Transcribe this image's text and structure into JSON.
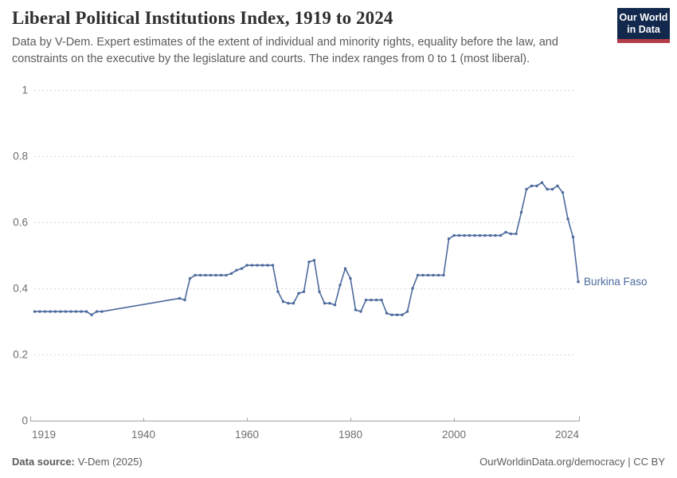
{
  "header": {
    "title": "Liberal Political Institutions Index, 1919 to 2024",
    "subtitle": "Data by V-Dem. Expert estimates of the extent of individual and minority rights, equality before the law, and\nconstraints on the executive by the legislature and courts. The index ranges from 0 to 1 (most liberal)."
  },
  "logo": {
    "line1": "Our World",
    "line2": "in Data",
    "background_color": "#12294d",
    "stripe_color": "#b23c47"
  },
  "footer": {
    "source_label": "Data source:",
    "source_value": "V-Dem (2025)",
    "credit": "OurWorldinData.org/democracy | CC BY"
  },
  "chart_data": {
    "type": "line",
    "title": "Liberal Political Institutions Index, 1919 to 2024",
    "xlabel": "",
    "ylabel": "",
    "xlim": [
      1919,
      2024
    ],
    "ylim": [
      0,
      1
    ],
    "xticks": [
      1919,
      1940,
      1960,
      1980,
      2000,
      2024
    ],
    "yticks": [
      0,
      0.2,
      0.4,
      0.6,
      0.8,
      1
    ],
    "grid": "dashed-horizontal",
    "legend_position": "end-of-line-label",
    "color": "#4c6a9c",
    "series": [
      {
        "name": "Burkina Faso",
        "note": "no data 1933-1946, straight connector drawn across gap",
        "points": [
          [
            1919,
            0.33
          ],
          [
            1920,
            0.33
          ],
          [
            1921,
            0.33
          ],
          [
            1922,
            0.33
          ],
          [
            1923,
            0.33
          ],
          [
            1924,
            0.33
          ],
          [
            1925,
            0.33
          ],
          [
            1926,
            0.33
          ],
          [
            1927,
            0.33
          ],
          [
            1928,
            0.33
          ],
          [
            1929,
            0.33
          ],
          [
            1930,
            0.32
          ],
          [
            1931,
            0.33
          ],
          [
            1932,
            0.33
          ],
          [
            1947,
            0.37
          ],
          [
            1948,
            0.365
          ],
          [
            1949,
            0.43
          ],
          [
            1950,
            0.44
          ],
          [
            1951,
            0.44
          ],
          [
            1952,
            0.44
          ],
          [
            1953,
            0.44
          ],
          [
            1954,
            0.44
          ],
          [
            1955,
            0.44
          ],
          [
            1956,
            0.44
          ],
          [
            1957,
            0.445
          ],
          [
            1958,
            0.455
          ],
          [
            1959,
            0.46
          ],
          [
            1960,
            0.47
          ],
          [
            1961,
            0.47
          ],
          [
            1962,
            0.47
          ],
          [
            1963,
            0.47
          ],
          [
            1964,
            0.47
          ],
          [
            1965,
            0.47
          ],
          [
            1966,
            0.39
          ],
          [
            1967,
            0.36
          ],
          [
            1968,
            0.355
          ],
          [
            1969,
            0.355
          ],
          [
            1970,
            0.385
          ],
          [
            1971,
            0.39
          ],
          [
            1972,
            0.48
          ],
          [
            1973,
            0.485
          ],
          [
            1974,
            0.39
          ],
          [
            1975,
            0.355
          ],
          [
            1976,
            0.355
          ],
          [
            1977,
            0.35
          ],
          [
            1978,
            0.41
          ],
          [
            1979,
            0.46
          ],
          [
            1980,
            0.43
          ],
          [
            1981,
            0.335
          ],
          [
            1982,
            0.33
          ],
          [
            1983,
            0.365
          ],
          [
            1984,
            0.365
          ],
          [
            1985,
            0.365
          ],
          [
            1986,
            0.365
          ],
          [
            1987,
            0.325
          ],
          [
            1988,
            0.32
          ],
          [
            1989,
            0.32
          ],
          [
            1990,
            0.32
          ],
          [
            1991,
            0.33
          ],
          [
            1992,
            0.4
          ],
          [
            1993,
            0.44
          ],
          [
            1994,
            0.44
          ],
          [
            1995,
            0.44
          ],
          [
            1996,
            0.44
          ],
          [
            1997,
            0.44
          ],
          [
            1998,
            0.44
          ],
          [
            1999,
            0.55
          ],
          [
            2000,
            0.56
          ],
          [
            2001,
            0.56
          ],
          [
            2002,
            0.56
          ],
          [
            2003,
            0.56
          ],
          [
            2004,
            0.56
          ],
          [
            2005,
            0.56
          ],
          [
            2006,
            0.56
          ],
          [
            2007,
            0.56
          ],
          [
            2008,
            0.56
          ],
          [
            2009,
            0.56
          ],
          [
            2010,
            0.57
          ],
          [
            2011,
            0.565
          ],
          [
            2012,
            0.565
          ],
          [
            2013,
            0.63
          ],
          [
            2014,
            0.7
          ],
          [
            2015,
            0.71
          ],
          [
            2016,
            0.71
          ],
          [
            2017,
            0.72
          ],
          [
            2018,
            0.7
          ],
          [
            2019,
            0.7
          ],
          [
            2020,
            0.71
          ],
          [
            2021,
            0.69
          ],
          [
            2022,
            0.61
          ],
          [
            2023,
            0.555
          ],
          [
            2024,
            0.42
          ]
        ]
      }
    ]
  }
}
